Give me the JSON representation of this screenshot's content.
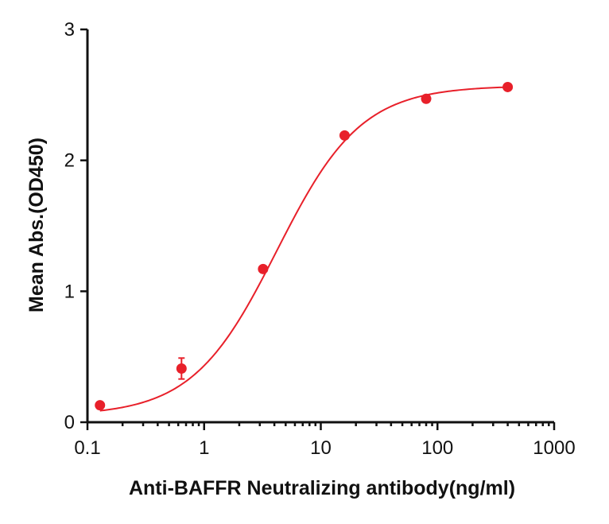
{
  "chart_data": {
    "type": "scatter",
    "title": "",
    "xlabel": "Anti-BAFFR Neutralizing antibody(ng/ml)",
    "ylabel": "Mean Abs.(OD450)",
    "x_scale": "log",
    "xlim": [
      0.1,
      1000
    ],
    "ylim": [
      0,
      3
    ],
    "x_ticks": [
      0.1,
      1,
      10,
      100,
      1000
    ],
    "x_tick_labels": [
      "0.1",
      "1",
      "10",
      "100",
      "1000"
    ],
    "y_ticks": [
      0,
      1,
      2,
      3
    ],
    "y_tick_labels": [
      "0",
      "1",
      "2",
      "3"
    ],
    "grid": false,
    "legend": "none",
    "color": "#e8202a",
    "series": [
      {
        "points": [
          {
            "x": 0.128,
            "y": 0.13,
            "err": 0.0
          },
          {
            "x": 0.64,
            "y": 0.41,
            "err": 0.08
          },
          {
            "x": 3.2,
            "y": 1.17,
            "err": 0.0
          },
          {
            "x": 16,
            "y": 2.19,
            "err": 0.0
          },
          {
            "x": 80,
            "y": 2.47,
            "err": 0.0
          },
          {
            "x": 400,
            "y": 2.56,
            "err": 0.0
          }
        ],
        "fit": {
          "model": "4PL",
          "bottom": 0.05,
          "top": 2.57,
          "ec50": 4.2,
          "hill": 1.2
        }
      }
    ]
  }
}
